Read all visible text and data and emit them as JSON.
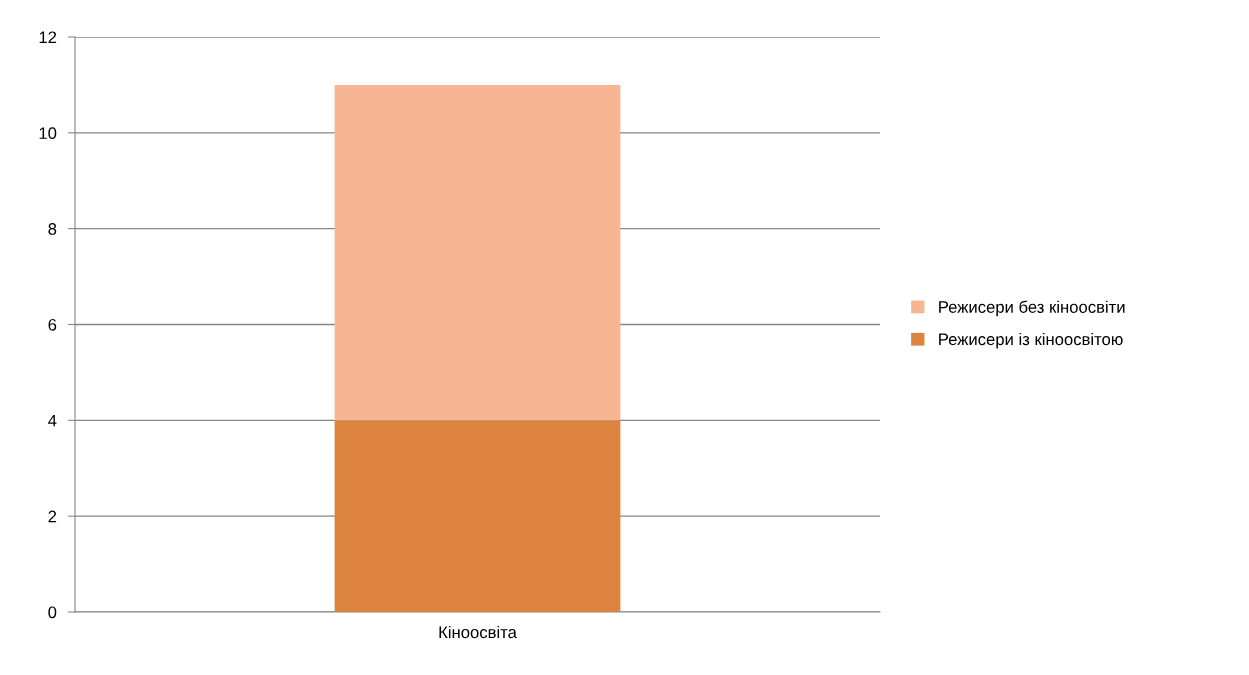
{
  "chart_data": {
    "type": "bar",
    "stacked": true,
    "categories": [
      "Кіноосвіта"
    ],
    "series": [
      {
        "name": "Режисери із кіноосвітою",
        "color": "#dc843f",
        "values": [
          4
        ]
      },
      {
        "name": "Режисери без кіноосвіти",
        "color": "#f8b593",
        "values": [
          7
        ]
      }
    ],
    "ylim": [
      0,
      12
    ],
    "yticks": [
      0,
      2,
      4,
      6,
      8,
      10,
      12
    ],
    "grid": "y",
    "legend": "right"
  }
}
